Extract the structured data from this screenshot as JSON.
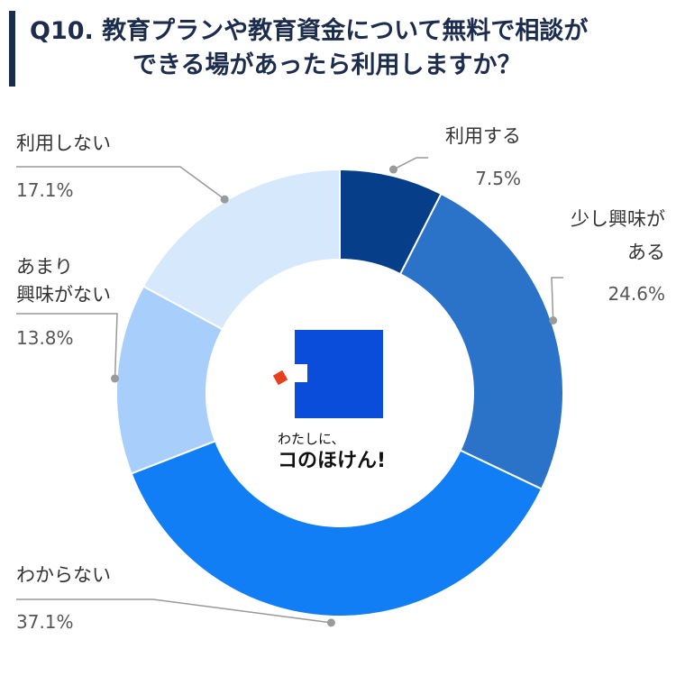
{
  "header": {
    "title_line1": "Q10. 教育プランや教育資金について無料で相談が",
    "title_line2": "できる場があったら利用しますか？"
  },
  "logo": {
    "tagline": "わたしに、",
    "name": "コのほけん!",
    "colors": {
      "square": "#0a4ddb",
      "accent": "#e8401c"
    }
  },
  "chart_data": {
    "type": "pie",
    "donut": true,
    "slices": [
      {
        "label_lines": [
          "利用する"
        ],
        "value": 7.5,
        "value_text": "7.5%",
        "color": "#073e8a"
      },
      {
        "label_lines": [
          "少し興味が",
          "ある"
        ],
        "value": 24.6,
        "value_text": "24.6%",
        "color": "#2b72c9"
      },
      {
        "label_lines": [
          "わからない"
        ],
        "value": 37.1,
        "value_text": "37.1%",
        "color": "#127ef5"
      },
      {
        "label_lines": [
          "あまり",
          "興味がない"
        ],
        "value": 13.8,
        "value_text": "13.8%",
        "color": "#a8cffb"
      },
      {
        "label_lines": [
          "利用しない"
        ],
        "value": 17.1,
        "value_text": "17.1%",
        "color": "#d6e8fc"
      }
    ]
  }
}
